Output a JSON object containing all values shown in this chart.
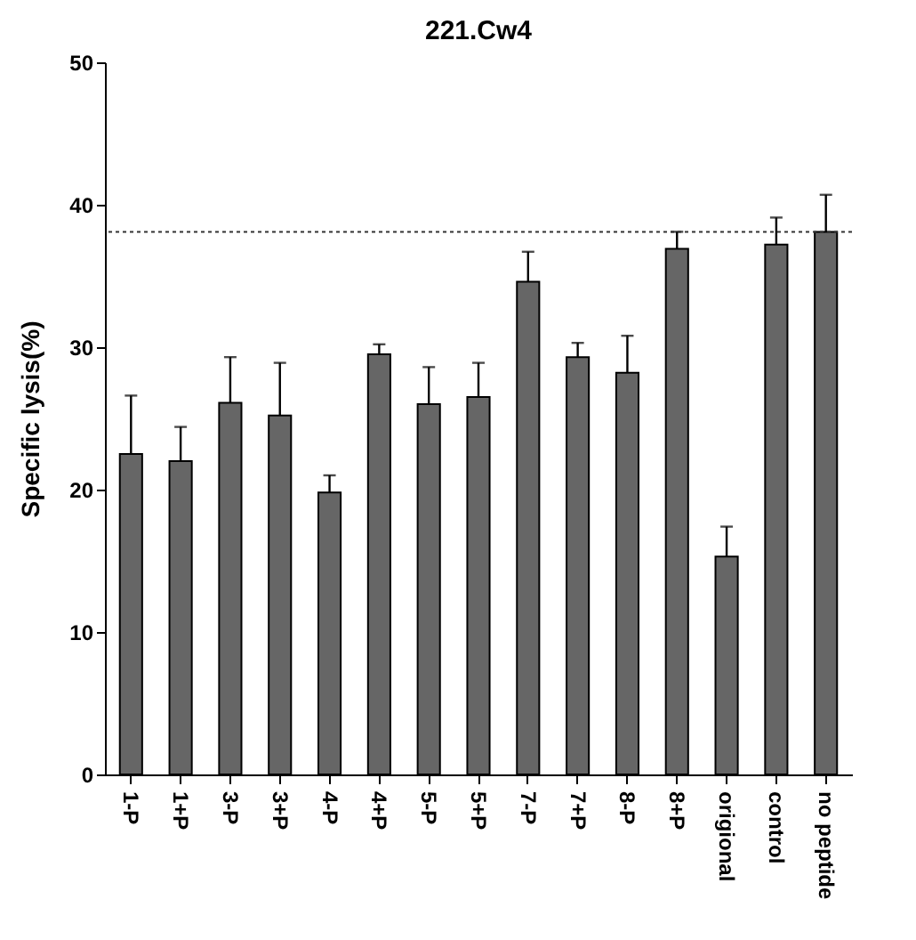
{
  "chart_data": {
    "type": "bar",
    "title": "221.Cw4",
    "ylabel": "Specific lysis(%)",
    "categories": [
      "1-P",
      "1+P",
      "3-P",
      "3+P",
      "4-P",
      "4+P",
      "5-P",
      "5+P",
      "7-P",
      "7+P",
      "8-P",
      "8+P",
      "origional",
      "control",
      "no peptide"
    ],
    "values": [
      22.5,
      22.0,
      26.1,
      25.2,
      19.8,
      29.5,
      26.0,
      26.5,
      34.6,
      29.3,
      28.2,
      36.9,
      15.3,
      37.2,
      38.1
    ],
    "errors": [
      [
        22.5,
        26.6
      ],
      [
        22.0,
        24.4
      ],
      [
        26.1,
        29.3
      ],
      [
        25.2,
        28.9
      ],
      [
        19.8,
        21.0
      ],
      [
        29.5,
        30.2
      ],
      [
        26.0,
        28.6
      ],
      [
        26.5,
        28.9
      ],
      [
        34.6,
        36.7
      ],
      [
        29.3,
        30.3
      ],
      [
        28.2,
        30.8
      ],
      [
        36.9,
        38.1
      ],
      [
        15.3,
        17.4
      ],
      [
        37.2,
        39.1
      ],
      [
        38.1,
        40.7
      ]
    ],
    "color": "#666666",
    "ylim": [
      0,
      50
    ],
    "yticks": [
      0,
      10,
      20,
      30,
      40,
      50
    ],
    "grid": false,
    "ref_lines": [
      {
        "axis": "y",
        "value": 38.1,
        "color": "#333333",
        "line_style": "dotted"
      }
    ]
  }
}
